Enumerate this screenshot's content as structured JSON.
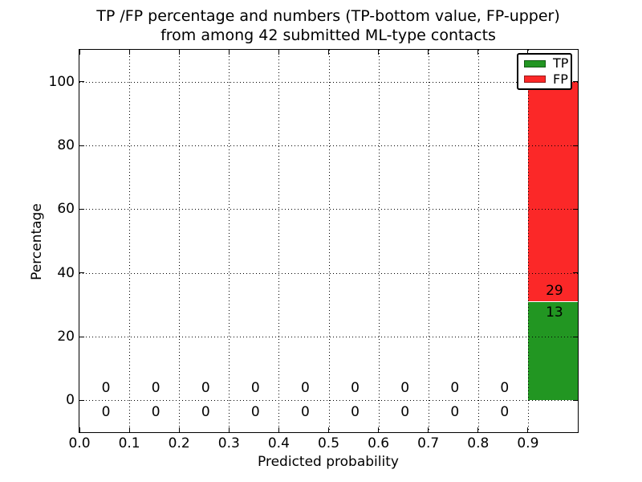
{
  "chart_data": {
    "type": "bar",
    "stacked": true,
    "title_line1": "TP /FP percentage and numbers (TP-bottom value, FP-upper)",
    "title_line2": "from among 42 submitted ML-type contacts",
    "xlabel": "Predicted probability",
    "ylabel": "Percentage",
    "xlim": [
      0.0,
      1.0
    ],
    "ylim": [
      -10,
      110
    ],
    "grid": "dotted",
    "total": 42,
    "bin_width": 0.1,
    "xticks": [
      {
        "v": 0.0,
        "label": "0.0"
      },
      {
        "v": 0.1,
        "label": "0.1"
      },
      {
        "v": 0.2,
        "label": "0.2"
      },
      {
        "v": 0.3,
        "label": "0.3"
      },
      {
        "v": 0.4,
        "label": "0.4"
      },
      {
        "v": 0.5,
        "label": "0.5"
      },
      {
        "v": 0.6,
        "label": "0.6"
      },
      {
        "v": 0.7,
        "label": "0.7"
      },
      {
        "v": 0.8,
        "label": "0.8"
      },
      {
        "v": 0.9,
        "label": "0.9"
      }
    ],
    "yticks": [
      {
        "v": 0,
        "label": "0"
      },
      {
        "v": 20,
        "label": "20"
      },
      {
        "v": 40,
        "label": "40"
      },
      {
        "v": 60,
        "label": "60"
      },
      {
        "v": 80,
        "label": "80"
      },
      {
        "v": 100,
        "label": "100"
      }
    ],
    "bins": [
      {
        "center": 0.05,
        "tp": 0,
        "fp": 0
      },
      {
        "center": 0.15,
        "tp": 0,
        "fp": 0
      },
      {
        "center": 0.25,
        "tp": 0,
        "fp": 0
      },
      {
        "center": 0.35,
        "tp": 0,
        "fp": 0
      },
      {
        "center": 0.45,
        "tp": 0,
        "fp": 0
      },
      {
        "center": 0.55,
        "tp": 0,
        "fp": 0
      },
      {
        "center": 0.65,
        "tp": 0,
        "fp": 0
      },
      {
        "center": 0.75,
        "tp": 0,
        "fp": 0
      },
      {
        "center": 0.85,
        "tp": 0,
        "fp": 0
      },
      {
        "center": 0.95,
        "tp": 13,
        "fp": 29,
        "tp_pct": 30.95,
        "fp_pct": 69.05
      }
    ],
    "series": [
      {
        "name": "TP",
        "color": "#229622",
        "values": [
          0,
          0,
          0,
          0,
          0,
          0,
          0,
          0,
          0,
          13
        ]
      },
      {
        "name": "FP",
        "color": "#fb2828",
        "values": [
          0,
          0,
          0,
          0,
          0,
          0,
          0,
          0,
          0,
          29
        ]
      }
    ],
    "colors": {
      "tp": "#229622",
      "fp": "#fb2828"
    },
    "legend": {
      "position": "upper right",
      "entries": [
        {
          "label": "TP",
          "color": "#229622"
        },
        {
          "label": "FP",
          "color": "#fb2828"
        }
      ]
    }
  }
}
